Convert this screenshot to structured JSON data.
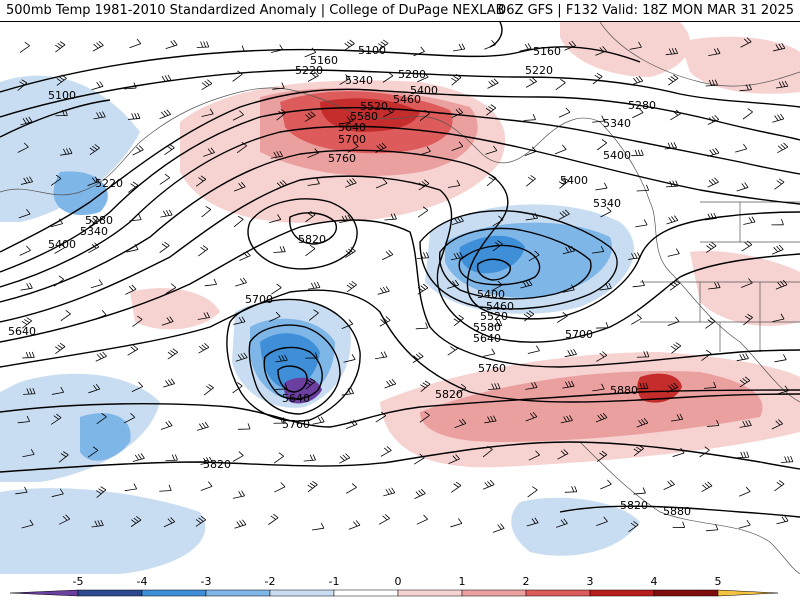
{
  "header": {
    "title_left": "500mb Temp 1981-2010 Standardized Anomaly | College of DuPage NEXLAB",
    "title_right": "06Z GFS | F132 Valid: 18Z MON MAR 31 2025"
  },
  "colorbar": {
    "ticks": [
      "-5",
      "-4",
      "-3",
      "-2",
      "-1",
      "0",
      "1",
      "2",
      "3",
      "4",
      "5"
    ],
    "colors": [
      "#6a3fa0",
      "#2b4a8f",
      "#3f8fd8",
      "#7fb6e8",
      "#c9ddf2",
      "#ffffff",
      "#f6d2d0",
      "#eba0a0",
      "#de5b5b",
      "#b91c1c",
      "#7f0f0f",
      "#f5c242"
    ]
  },
  "map": {
    "contour_labels": [
      "5100",
      "5160",
      "5220",
      "5280",
      "5340",
      "5400",
      "5460",
      "5520",
      "5580",
      "5640",
      "5700",
      "5760",
      "5820",
      "5220",
      "5280",
      "5340",
      "5400",
      "5100",
      "5160",
      "5220",
      "5280",
      "5340",
      "5400",
      "5400",
      "5340",
      "5400",
      "5460",
      "5520",
      "5580",
      "5640",
      "5700",
      "5760",
      "5820",
      "5820",
      "5880",
      "5880",
      "5640",
      "5640",
      "5700",
      "5760",
      "5820"
    ]
  }
}
